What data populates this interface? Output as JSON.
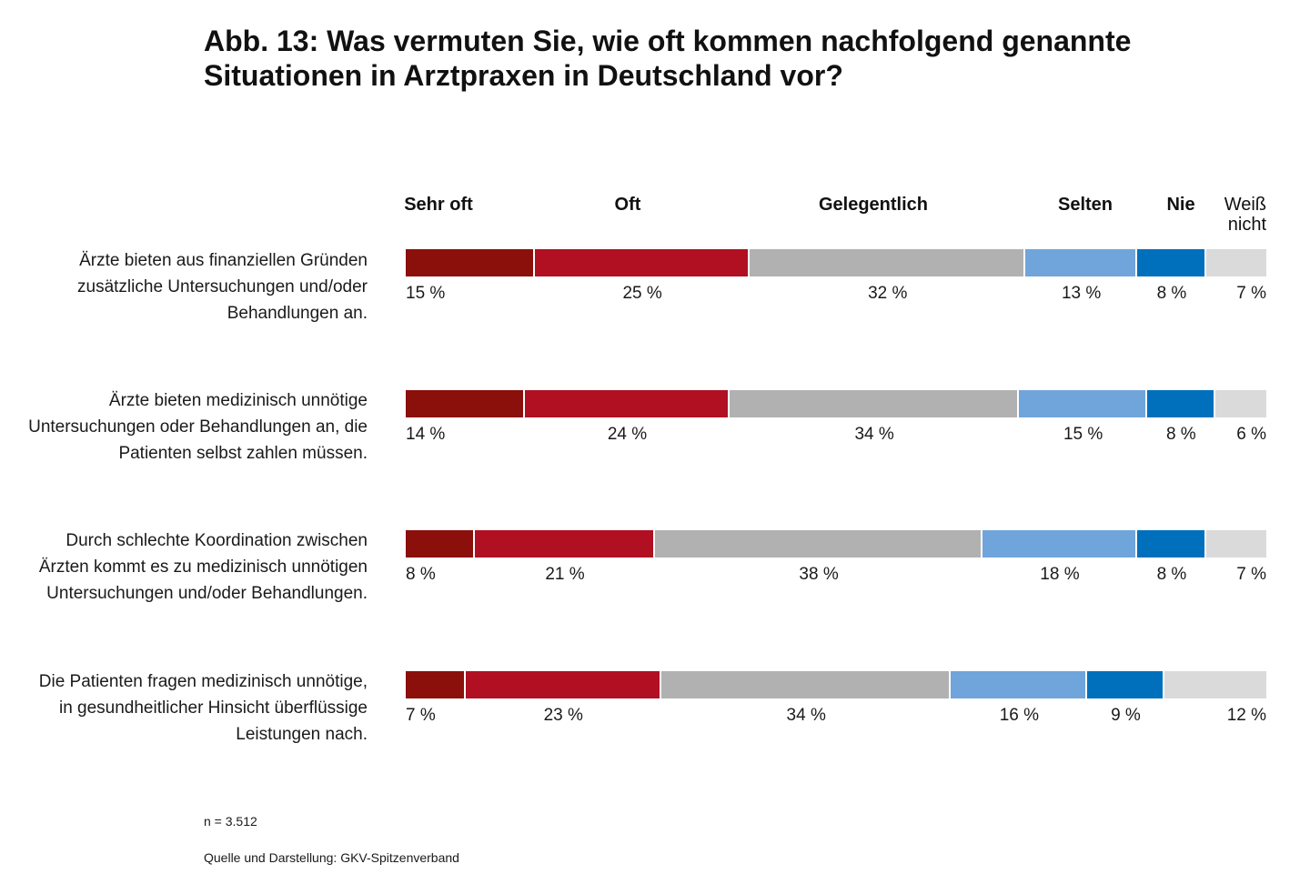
{
  "title": "Abb. 13: Was vermuten Sie, wie oft kommen nachfolgend genannte Situationen in Arztpraxen in Deutschland vor?",
  "footnote_n": "n = 3.512",
  "source": "Quelle und Darstellung: GKV-Spitzenverband",
  "chart_data": {
    "type": "bar",
    "orientation": "horizontal",
    "stacked": true,
    "unit": "%",
    "title": "Abb. 13: Was vermuten Sie, wie oft kommen nachfolgend genannte Situationen in Arztpraxen in Deutschland vor?",
    "categories": [
      "Ärzte bieten aus finanziellen Gründen zusätzliche Untersuchungen und/oder Behandlungen an.",
      "Ärzte bieten medizinisch unnötige Untersuchungen oder Behandlungen an, die Patienten selbst zahlen müssen.",
      "Durch schlechte Koordination zwischen Ärzten kommt es zu medizinisch unnötigen Untersuchungen und/oder Behandlungen.",
      "Die Patienten fragen medizinisch unnötige, in gesundheitlicher Hinsicht überflüssige Leistungen nach."
    ],
    "series": [
      {
        "name": "Sehr oft",
        "color": "#8b0f0b",
        "values": [
          15,
          14,
          8,
          7
        ]
      },
      {
        "name": "Oft",
        "color": "#b01022",
        "values": [
          25,
          24,
          21,
          23
        ]
      },
      {
        "name": "Gelegentlich",
        "color": "#b1b1b1",
        "values": [
          32,
          34,
          38,
          34
        ]
      },
      {
        "name": "Selten",
        "color": "#70a5dc",
        "values": [
          13,
          15,
          18,
          16
        ]
      },
      {
        "name": "Nie",
        "color": "#0070bd",
        "values": [
          8,
          8,
          8,
          9
        ]
      },
      {
        "name": "Weiß nicht",
        "color": "#dadada",
        "values": [
          7,
          6,
          7,
          12
        ]
      }
    ],
    "value_labels": [
      [
        "15 %",
        "25 %",
        "32 %",
        "13 %",
        "8 %",
        "7 %"
      ],
      [
        "14 %",
        "24 %",
        "34 %",
        "15 %",
        "8 %",
        "6 %"
      ],
      [
        "8 %",
        "21 %",
        "38 %",
        "18 %",
        "8 %",
        "7 %"
      ],
      [
        "7 %",
        "23 %",
        "34 %",
        "16 %",
        "9 %",
        "12 %"
      ]
    ],
    "legend_position": "top"
  }
}
